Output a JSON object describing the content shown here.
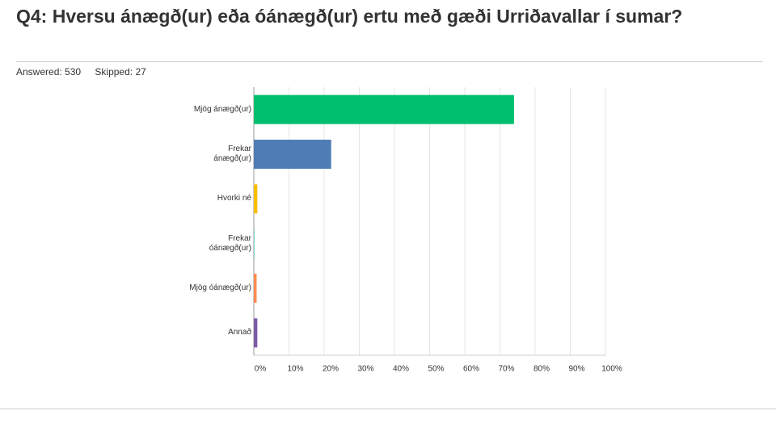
{
  "header": {
    "title": "Q4: Hversu ánægð(ur) eða óánægð(ur) ertu með gæði Urriðavallar í sumar?",
    "answered": "Answered: 530",
    "skipped": "Skipped: 27"
  },
  "chart_data": {
    "type": "bar",
    "orientation": "horizontal",
    "categories": [
      "Mjög ánægð(ur)",
      "Frekar\nánægð(ur)",
      "Hvorki né",
      "Frekar\nóánægð(ur)",
      "Mjög óánægð(ur)",
      "Annað"
    ],
    "values": [
      74,
      22,
      1,
      0.2,
      0.8,
      1
    ],
    "colors": [
      "#00bf6f",
      "#507cb6",
      "#f9be00",
      "#6bc8cd",
      "#ff8b4f",
      "#7d5ba6"
    ],
    "xlim": [
      0,
      100
    ],
    "xticks": [
      {
        "value": 0,
        "label": "0%"
      },
      {
        "value": 10,
        "label": "10%"
      },
      {
        "value": 20,
        "label": "20%"
      },
      {
        "value": 30,
        "label": "30%"
      },
      {
        "value": 40,
        "label": "40%"
      },
      {
        "value": 50,
        "label": "50%"
      },
      {
        "value": 60,
        "label": "60%"
      },
      {
        "value": 70,
        "label": "70%"
      },
      {
        "value": 80,
        "label": "80%"
      },
      {
        "value": 90,
        "label": "90%"
      },
      {
        "value": 100,
        "label": "100%"
      }
    ],
    "grid": true
  }
}
